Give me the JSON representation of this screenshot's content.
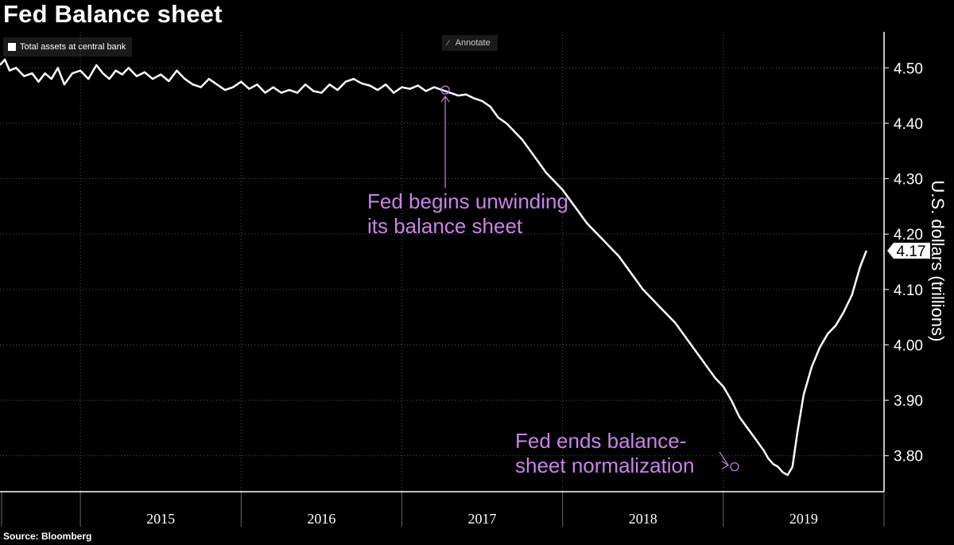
{
  "title": "Fed Balance sheet",
  "legend": {
    "label": "Total assets at central bank",
    "color": "#ffffff"
  },
  "toolbar": {
    "annotate_label": "Annotate",
    "annotate_icon": "pencil-icon"
  },
  "source": "Source: Bloomberg",
  "annotation_color": "#c784e8",
  "chart_data": {
    "type": "line",
    "ylabel": "U.S. dollars (trillions)",
    "ylim": [
      3.735,
      4.565
    ],
    "yticks": [
      "4.50",
      "4.40",
      "4.30",
      "4.20",
      "4.10",
      "4.00",
      "3.90",
      "3.80"
    ],
    "ytick_values": [
      4.5,
      4.4,
      4.3,
      4.2,
      4.1,
      4.0,
      3.9,
      3.8
    ],
    "xlim": [
      2014.5,
      2020.0
    ],
    "x_labels": [
      "2015",
      "2016",
      "2017",
      "2018",
      "2019"
    ],
    "y_axis_position": "right",
    "grid": true,
    "last_value_label": "4.17",
    "series": [
      {
        "name": "Total assets at central bank",
        "color": "#ffffff",
        "x": [
          2014.5,
          2014.53,
          2014.56,
          2014.6,
          2014.65,
          2014.7,
          2014.74,
          2014.78,
          2014.82,
          2014.86,
          2014.9,
          2014.95,
          2015.0,
          2015.05,
          2015.1,
          2015.14,
          2015.18,
          2015.22,
          2015.26,
          2015.3,
          2015.35,
          2015.4,
          2015.45,
          2015.5,
          2015.55,
          2015.6,
          2015.65,
          2015.7,
          2015.75,
          2015.8,
          2015.85,
          2015.9,
          2015.95,
          2016.0,
          2016.05,
          2016.1,
          2016.15,
          2016.2,
          2016.25,
          2016.3,
          2016.35,
          2016.4,
          2016.45,
          2016.5,
          2016.55,
          2016.6,
          2016.65,
          2016.7,
          2016.75,
          2016.8,
          2016.85,
          2016.9,
          2016.95,
          2017.0,
          2017.05,
          2017.1,
          2017.15,
          2017.2,
          2017.25,
          2017.3,
          2017.35,
          2017.4,
          2017.45,
          2017.5,
          2017.55,
          2017.6,
          2017.65,
          2017.7,
          2017.75,
          2017.8,
          2017.85,
          2017.9,
          2017.95,
          2018.0,
          2018.05,
          2018.1,
          2018.15,
          2018.2,
          2018.25,
          2018.3,
          2018.35,
          2018.4,
          2018.45,
          2018.5,
          2018.55,
          2018.6,
          2018.65,
          2018.7,
          2018.75,
          2018.8,
          2018.85,
          2018.9,
          2018.95,
          2019.0,
          2019.05,
          2019.1,
          2019.15,
          2019.2,
          2019.25,
          2019.28,
          2019.31,
          2019.34,
          2019.37,
          2019.4,
          2019.43,
          2019.46,
          2019.5,
          2019.55,
          2019.6,
          2019.65,
          2019.7,
          2019.75,
          2019.8,
          2019.85,
          2019.89
        ],
        "values": [
          4.505,
          4.515,
          4.495,
          4.5,
          4.485,
          4.49,
          4.475,
          4.49,
          4.48,
          4.5,
          4.47,
          4.49,
          4.495,
          4.48,
          4.505,
          4.49,
          4.48,
          4.495,
          4.488,
          4.5,
          4.485,
          4.492,
          4.48,
          4.488,
          4.476,
          4.495,
          4.48,
          4.47,
          4.465,
          4.48,
          4.47,
          4.46,
          4.465,
          4.475,
          4.462,
          4.47,
          4.455,
          4.465,
          4.455,
          4.46,
          4.455,
          4.47,
          4.458,
          4.455,
          4.47,
          4.46,
          4.475,
          4.48,
          4.472,
          4.468,
          4.46,
          4.47,
          4.455,
          4.465,
          4.462,
          4.468,
          4.458,
          4.465,
          4.46,
          4.455,
          4.45,
          4.452,
          4.445,
          4.44,
          4.43,
          4.41,
          4.4,
          4.385,
          4.37,
          4.35,
          4.33,
          4.31,
          4.295,
          4.28,
          4.26,
          4.24,
          4.22,
          4.205,
          4.19,
          4.175,
          4.16,
          4.14,
          4.12,
          4.1,
          4.085,
          4.07,
          4.055,
          4.04,
          4.02,
          4.0,
          3.98,
          3.96,
          3.94,
          3.925,
          3.9,
          3.87,
          3.85,
          3.83,
          3.81,
          3.795,
          3.785,
          3.78,
          3.77,
          3.765,
          3.78,
          3.84,
          3.91,
          3.96,
          3.995,
          4.02,
          4.035,
          4.06,
          4.09,
          4.14,
          4.17
        ]
      }
    ],
    "annotations": [
      {
        "text_lines": [
          "Fed begins unwinding",
          "its balance sheet"
        ],
        "x": 2017.27,
        "y": 4.46
      },
      {
        "text_lines": [
          "Fed ends balance-",
          "sheet normalization"
        ],
        "x": 2019.07,
        "y": 3.78
      }
    ]
  }
}
